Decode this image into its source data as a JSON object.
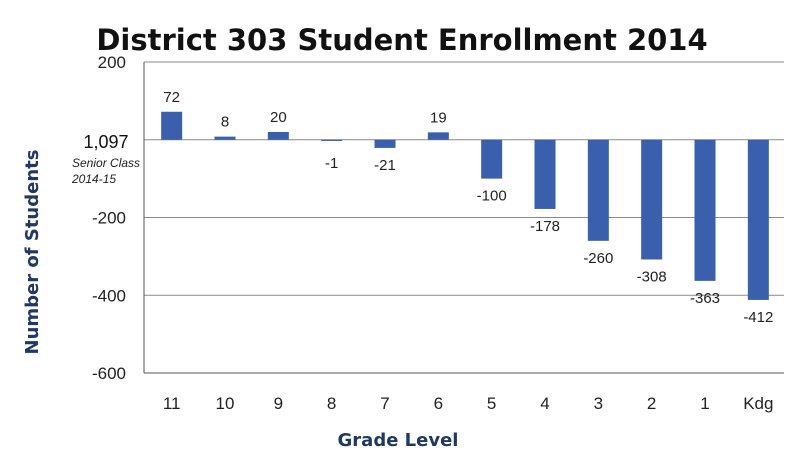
{
  "chart_data": {
    "type": "bar",
    "title": "District 303 Student Enrollment 2014",
    "xlabel": "Grade Level",
    "ylabel": "Number of Students",
    "categories": [
      "11",
      "10",
      "9",
      "8",
      "7",
      "6",
      "5",
      "4",
      "3",
      "2",
      "1",
      "Kdg"
    ],
    "values": [
      72,
      8,
      20,
      -1,
      -21,
      19,
      -100,
      -178,
      -260,
      -308,
      -363,
      -412
    ],
    "data_labels": [
      "72",
      "8",
      "20",
      "-1",
      "-21",
      "19",
      "-100",
      "-178",
      "-260",
      "-308",
      "-363",
      "-412"
    ],
    "ylim": [
      -600,
      200
    ],
    "yticks": [
      200,
      -200,
      -400,
      -600
    ],
    "ytick_labels": [
      "200",
      "-200",
      "-400",
      "-600"
    ],
    "baseline_label": "1,097",
    "baseline_note": [
      "Senior Class",
      "2014-15"
    ],
    "grid": true,
    "legend": "none",
    "bar_color": "#3a5fad"
  }
}
